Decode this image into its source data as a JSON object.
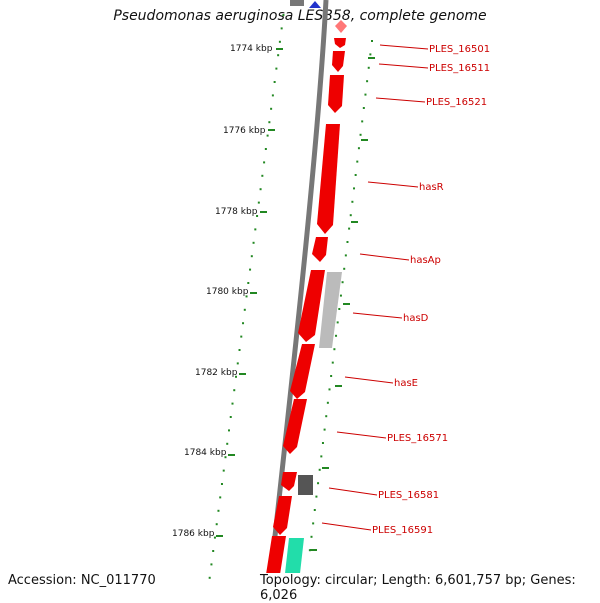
{
  "title": "Pseudomonas aeruginosa LESB58, complete genome",
  "accession": "Accession: NC_011770",
  "topology": "Topology: circular; Length: 6,601,757 bp; Genes: 6,026",
  "colors": {
    "backbone": "#777777",
    "gene_forward": "#ee0000",
    "gene_gray": "#bbbbbb",
    "gene_dark": "#555555",
    "gene_teal": "#22ddaa",
    "gene_blue": "#2233cc",
    "tick": "#228822",
    "label": "#cc0000"
  },
  "ticks": [
    {
      "label": "1774 kbp"
    },
    {
      "label": "1776 kbp"
    },
    {
      "label": "1778 kbp"
    },
    {
      "label": "1780 kbp"
    },
    {
      "label": "1782 kbp"
    },
    {
      "label": "1784 kbp"
    },
    {
      "label": "1786 kbp"
    }
  ],
  "genes": [
    {
      "label": "PLES_16501"
    },
    {
      "label": "PLES_16511"
    },
    {
      "label": "PLES_16521"
    },
    {
      "label": "hasR"
    },
    {
      "label": "hasAp"
    },
    {
      "label": "hasD"
    },
    {
      "label": "hasE"
    },
    {
      "label": "PLES_16571"
    },
    {
      "label": "PLES_16581"
    },
    {
      "label": "PLES_16591"
    }
  ]
}
